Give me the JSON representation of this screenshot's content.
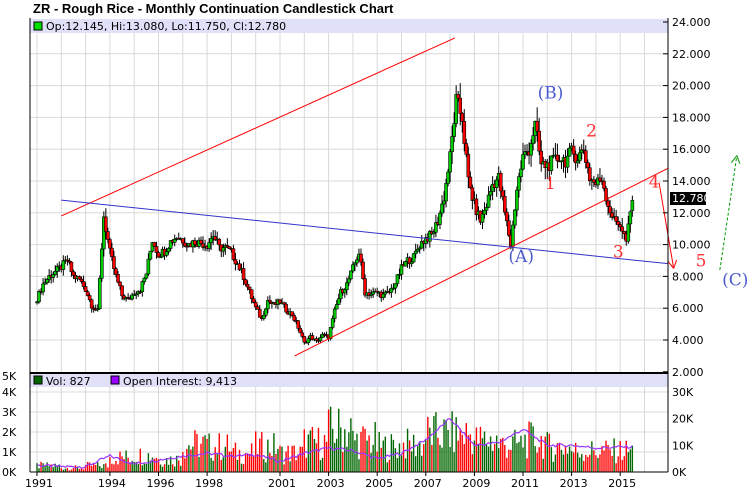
{
  "title": "ZR - Rough Rice - Monthly Continuation Candlestick Chart",
  "ohlc_legend": "Op:12.145, Hi:13.080, Lo:11.750, Cl:12.780",
  "volume_legend": "Vol: 827",
  "oi_legend": "Open Interest: 9,413",
  "last_price_label": "12.780",
  "colors": {
    "up": "#00cc00",
    "down": "#ff0000",
    "volume_up": "#006600",
    "volume_down": "#ff0000",
    "oi": "#9933ff",
    "trend_red": "#ff0000",
    "trend_blue": "#3333cc",
    "arrow_green": "#009900",
    "legend_bg": "#e0e0f8",
    "grid": "#d8d8d8",
    "label_blue": "#4a5bd0",
    "label_red": "#ff3030"
  },
  "chart_data": [
    {
      "type": "candlestick",
      "title": "ZR - Rough Rice - Monthly Continuation Candlestick Chart",
      "ylim": [
        2,
        24
      ],
      "y_ticks": [
        "24.000",
        "22.000",
        "20.000",
        "18.000",
        "16.000",
        "14.000",
        "12.000",
        "10.000",
        "8.000",
        "6.000",
        "4.000",
        "2.000"
      ],
      "x_ticks": [
        "1991",
        "1994",
        "1996",
        "1998",
        "2001",
        "2003",
        "2005",
        "2007",
        "2009",
        "2011",
        "2013",
        "2015"
      ],
      "grid": true,
      "quarterly_close_start": "1991 Q1",
      "quarterly_close": [
        6.6,
        7.5,
        8.0,
        8.3,
        8.6,
        9.0,
        8.0,
        7.8,
        7.2,
        6.2,
        5.8,
        11.8,
        9.5,
        8.0,
        6.8,
        6.5,
        7.0,
        7.2,
        8.2,
        10.3,
        9.4,
        9.6,
        10.2,
        10.5,
        10.3,
        10.0,
        10.2,
        10.1,
        10.0,
        10.6,
        9.8,
        9.8,
        9.5,
        8.8,
        8.0,
        7.0,
        6.0,
        5.3,
        6.5,
        6.2,
        6.4,
        5.9,
        5.6,
        4.8,
        3.8,
        4.2,
        3.9,
        4.3,
        4.2,
        5.8,
        7.0,
        7.5,
        8.5,
        9.5,
        7.0,
        6.9,
        7.0,
        6.8,
        7.0,
        7.6,
        8.5,
        9.0,
        9.2,
        10.0,
        10.4,
        10.6,
        11.5,
        13.0,
        15.5,
        19.0,
        18.0,
        14.0,
        12.5,
        11.5,
        12.5,
        13.8,
        14.2,
        12.0,
        10.0,
        13.5,
        15.5,
        16.0,
        17.5,
        15.0,
        15.0,
        15.2,
        15.5,
        15.3,
        15.8,
        15.5,
        16.0,
        14.2,
        13.8,
        14.2,
        12.5,
        11.5,
        11.3,
        10.2,
        12.78
      ],
      "last": {
        "open": 12.145,
        "high": 13.08,
        "low": 11.75,
        "close": 12.78
      },
      "trendlines": [
        {
          "color": "red",
          "from": [
            1992.0,
            11.8
          ],
          "to": [
            2008.2,
            23.0
          ]
        },
        {
          "color": "red",
          "from": [
            2001.6,
            3.0
          ],
          "to": [
            2016.97,
            14.8
          ]
        },
        {
          "color": "blue",
          "from": [
            1992.0,
            12.8
          ],
          "to": [
            2016.97,
            8.8
          ]
        }
      ],
      "annotations": [
        {
          "text": "(A)",
          "at": [
            2010.4,
            8.9
          ],
          "color": "blue"
        },
        {
          "text": "(B)",
          "at": [
            2011.6,
            19.2
          ],
          "color": "blue"
        },
        {
          "text": "(C)",
          "at": [
            2018.7,
            7.8
          ],
          "color": "blue"
        },
        {
          "text": "1",
          "at": [
            2011.9,
            13.5
          ],
          "color": "red"
        },
        {
          "text": "2",
          "at": [
            2013.6,
            16.8
          ],
          "color": "red"
        },
        {
          "text": "3",
          "at": [
            2014.7,
            9.2
          ],
          "color": "red"
        },
        {
          "text": "4",
          "at": [
            2017.0,
            13.6
          ],
          "color": "red"
        },
        {
          "text": "5",
          "at": [
            2017.2,
            9.0
          ],
          "color": "red"
        }
      ],
      "arrows": [
        {
          "color": "red",
          "from": [
            2016.6,
            13.9
          ],
          "to": [
            2017.2,
            8.5
          ]
        },
        {
          "color": "green",
          "from": [
            2019.1,
            8.4
          ],
          "to": [
            2019.8,
            15.6
          ]
        }
      ]
    },
    {
      "type": "bar",
      "series": [
        {
          "name": "Vol",
          "units": "K",
          "yearly_avg": [
            0.3,
            0.2,
            0.3,
            0.7,
            0.8,
            0.6,
            1.3,
            1.2,
            0.9,
            1.2,
            0.9,
            1.4,
            2.0,
            1.5,
            1.2,
            1.3,
            1.8,
            1.8,
            1.5,
            1.3,
            1.5,
            1.2,
            1.0,
            1.0,
            1.0
          ]
        },
        {
          "name": "Open Interest",
          "units": "K",
          "yearly_avg": [
            2.5,
            2.0,
            2.0,
            6.0,
            3.0,
            4.5,
            6.0,
            7.0,
            6.0,
            6.5,
            4.0,
            7.0,
            9.0,
            8.0,
            5.0,
            7.0,
            12.0,
            20.0,
            10.0,
            11.0,
            16.0,
            10.0,
            10.0,
            9.0,
            9.4
          ]
        }
      ],
      "years_start": 1991,
      "left_ticks": [
        "5K",
        "4K",
        "3K",
        "2K",
        "1K",
        "0K"
      ],
      "right_ticks": [
        "2.000",
        "30K",
        "20K",
        "10K",
        "0K"
      ]
    }
  ]
}
